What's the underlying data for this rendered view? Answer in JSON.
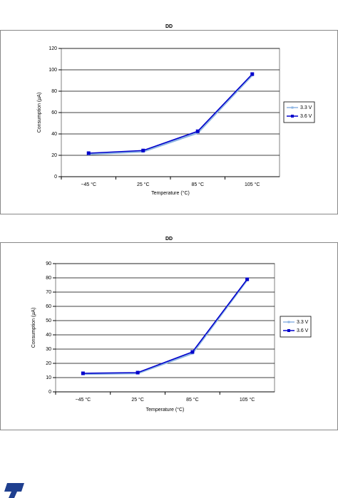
{
  "chart_data": [
    {
      "type": "line",
      "title": "DD",
      "x_label": "Temperature (°C)",
      "y_label": "Consumption (µA)",
      "categories": [
        "−45 °C",
        "25 °C",
        "85 °C",
        "105 °C"
      ],
      "series": [
        {
          "name": "3.3 V",
          "color": "#8db4e2",
          "values": [
            21,
            23.5,
            41,
            95
          ]
        },
        {
          "name": "3.6 V",
          "color": "#0000cc",
          "values": [
            22,
            24.5,
            42.5,
            96
          ]
        }
      ],
      "ylim": [
        0,
        120
      ],
      "yticks": [
        0,
        20,
        40,
        60,
        80,
        100,
        120
      ],
      "grid": true,
      "legend": "right"
    },
    {
      "type": "line",
      "title": "DD",
      "x_label": "Temperature (°C)",
      "y_label": "Consumption (µA)",
      "categories": [
        "−45 °C",
        "25 °C",
        "85 °C",
        "105 °C"
      ],
      "series": [
        {
          "name": "3.3 V",
          "color": "#8db4e2",
          "values": [
            12.5,
            13,
            27,
            78.5
          ]
        },
        {
          "name": "3.6 V",
          "color": "#0000cc",
          "values": [
            13,
            13.5,
            28,
            79
          ]
        }
      ],
      "ylim": [
        0,
        90
      ],
      "yticks": [
        0,
        10,
        20,
        30,
        40,
        50,
        60,
        70,
        80,
        90
      ],
      "grid": true,
      "legend": "right"
    }
  ]
}
